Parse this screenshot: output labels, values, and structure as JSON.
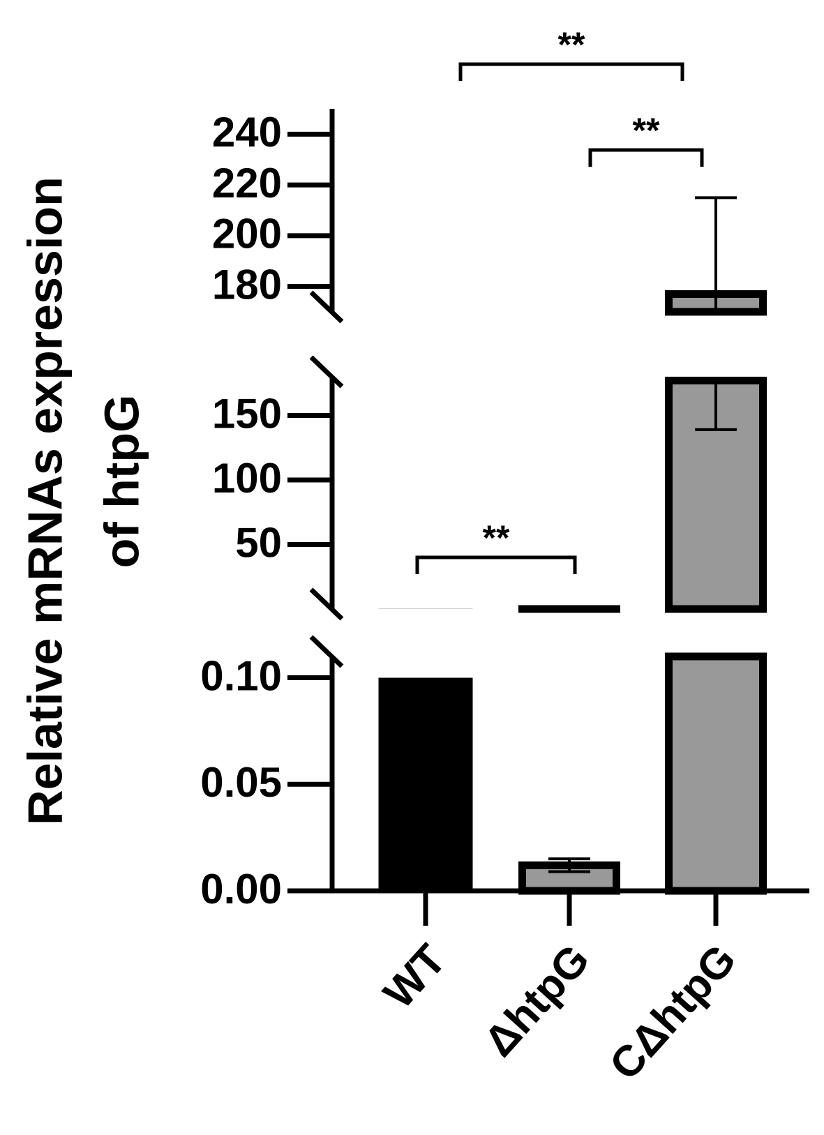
{
  "chart_data": {
    "type": "bar",
    "y_label": [
      "Relative mRNAs expression",
      "of htpG"
    ],
    "categories": [
      "WT",
      "ΔhtpG",
      "CΔhtpG"
    ],
    "values": [
      0.1,
      0.012,
      177
    ],
    "errors": [
      null,
      0.003,
      38
    ],
    "colors": [
      "#000000",
      "#999999",
      "#999999"
    ],
    "segments": [
      {
        "ylim": [
          0,
          0.11
        ],
        "yticks": [
          {
            "value": 0,
            "label": "0.00"
          },
          {
            "value": 0.05,
            "label": "0.05"
          },
          {
            "value": 0.1,
            "label": "0.10"
          }
        ]
      },
      {
        "ylim": [
          0,
          180
        ],
        "yticks": [
          50,
          100,
          150
        ]
      },
      {
        "ylim": [
          170,
          250
        ],
        "yticks": [
          180,
          200,
          220,
          240
        ]
      }
    ],
    "comparisons": [
      {
        "groups": [
          0,
          1
        ],
        "label": "**"
      },
      {
        "groups": [
          1,
          2
        ],
        "label": "**"
      },
      {
        "groups": [
          0,
          2
        ],
        "label": "**"
      }
    ]
  }
}
